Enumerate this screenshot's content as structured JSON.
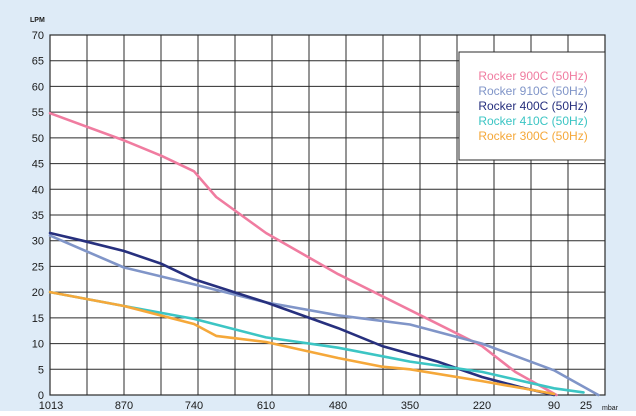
{
  "colors": {
    "background": "#deebf7",
    "plot_background": "#ffffff",
    "grid": "#2b2b2b",
    "text": "#1a1a1a"
  },
  "chart_data": {
    "type": "line",
    "title": "",
    "ylabel": "LPM",
    "xlabel": "mbar",
    "ylim": [
      0,
      70
    ],
    "y_ticks": [
      0,
      5,
      10,
      15,
      20,
      25,
      30,
      35,
      40,
      45,
      50,
      55,
      60,
      65,
      70
    ],
    "x_ticks": [
      "1013",
      "870",
      "740",
      "610",
      "480",
      "350",
      "220",
      "90",
      "25"
    ],
    "x_range": [
      1013,
      0
    ],
    "x_tick_positions_note_values": [
      1013,
      870,
      740,
      610,
      480,
      350,
      220,
      90,
      25
    ],
    "grid": true,
    "legend_position": "top-right",
    "series": [
      {
        "name": "Rocker 900C (50Hz)",
        "color": "#f07ca0",
        "x": [
          1013,
          870,
          800,
          740,
          700,
          610,
          480,
          350,
          220,
          160,
          85
        ],
        "y": [
          54.8,
          49.5,
          46.5,
          43.5,
          38.5,
          31.5,
          23.5,
          16.5,
          9.5,
          4.5,
          0
        ]
      },
      {
        "name": "Rocker 910C (50Hz)",
        "color": "#8095c8",
        "x": [
          1013,
          870,
          740,
          610,
          480,
          350,
          220,
          90,
          0
        ],
        "y": [
          31,
          24.8,
          21.5,
          18,
          15.5,
          13.7,
          10,
          4.8,
          0
        ]
      },
      {
        "name": "Rocker 400C (50Hz)",
        "color": "#27307e",
        "x": [
          1013,
          950,
          870,
          800,
          740,
          610,
          480,
          400,
          350,
          300,
          220,
          150,
          90
        ],
        "y": [
          31.5,
          30,
          28,
          25.5,
          22.5,
          18,
          13,
          9.5,
          8,
          6.5,
          3.5,
          1.5,
          0
        ]
      },
      {
        "name": "Rocker 410C (50Hz)",
        "color": "#3cc5c4",
        "x": [
          1013,
          870,
          740,
          610,
          480,
          350,
          220,
          90,
          30
        ],
        "y": [
          20,
          17.3,
          14.8,
          11.2,
          9.2,
          6.5,
          4.5,
          1.3,
          0.5
        ]
      },
      {
        "name": "Rocker 300C (50Hz)",
        "color": "#f5a83a",
        "x": [
          1013,
          870,
          740,
          700,
          610,
          480,
          400,
          350,
          220,
          130,
          90
        ],
        "y": [
          20,
          17.3,
          13.8,
          11.5,
          10.3,
          7.2,
          5.5,
          5,
          2.7,
          1,
          0.2
        ]
      }
    ]
  }
}
